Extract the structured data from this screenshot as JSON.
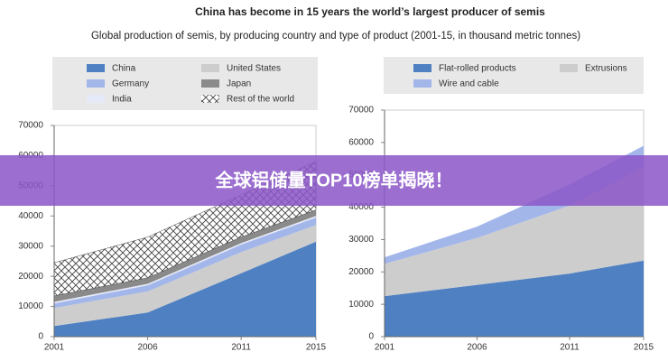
{
  "title": "China has become in 15 years the world’s largest producer of semis",
  "subtitle": "Global production of semis, by producing country and type of product (2001-15, in thousand metric tonnes)",
  "banner": "全球铝储量TOP10榜单揭晓！",
  "chart_data": [
    {
      "type": "area",
      "stacked": true,
      "x": [
        2001,
        2006,
        2011,
        2015
      ],
      "xlim": [
        2001,
        2015
      ],
      "xticks": [
        2001,
        2006,
        2011,
        2015
      ],
      "ylim": [
        0,
        70000
      ],
      "yticks": [
        0,
        10000,
        20000,
        30000,
        40000,
        50000,
        60000,
        70000
      ],
      "series": [
        {
          "name": "China",
          "color": "#4f81c2",
          "values": [
            3500,
            8000,
            21000,
            31500
          ]
        },
        {
          "name": "United States",
          "color": "#cdcdcd",
          "values": [
            6000,
            7000,
            7000,
            5500
          ]
        },
        {
          "name": "Germany",
          "color": "#a2b6ea",
          "values": [
            1500,
            2000,
            2500,
            2500
          ]
        },
        {
          "name": "India",
          "color": "#e6eaf8",
          "values": [
            500,
            500,
            500,
            500
          ]
        },
        {
          "name": "Japan",
          "color": "#8a8a8a",
          "values": [
            2000,
            2000,
            2000,
            2000
          ]
        },
        {
          "name": "Rest of the world",
          "color": "#444444",
          "hatch": true,
          "values": [
            11000,
            13500,
            14000,
            16000
          ]
        }
      ]
    },
    {
      "type": "area",
      "stacked": true,
      "x": [
        2001,
        2006,
        2011,
        2015
      ],
      "xlim": [
        2001,
        2015
      ],
      "xticks": [
        2001,
        2006,
        2011,
        2015
      ],
      "ylim": [
        0,
        70000
      ],
      "yticks": [
        0,
        10000,
        20000,
        30000,
        40000,
        50000,
        60000,
        70000
      ],
      "series": [
        {
          "name": "Flat-rolled products",
          "color": "#4f81c2",
          "values": [
            12500,
            16000,
            19500,
            23500
          ]
        },
        {
          "name": "Extrusions",
          "color": "#cdcdcd",
          "values": [
            10000,
            14500,
            21000,
            29000
          ]
        },
        {
          "name": "Wire and cable",
          "color": "#a2b6ea",
          "values": [
            2000,
            3500,
            6500,
            6500
          ]
        }
      ]
    }
  ]
}
